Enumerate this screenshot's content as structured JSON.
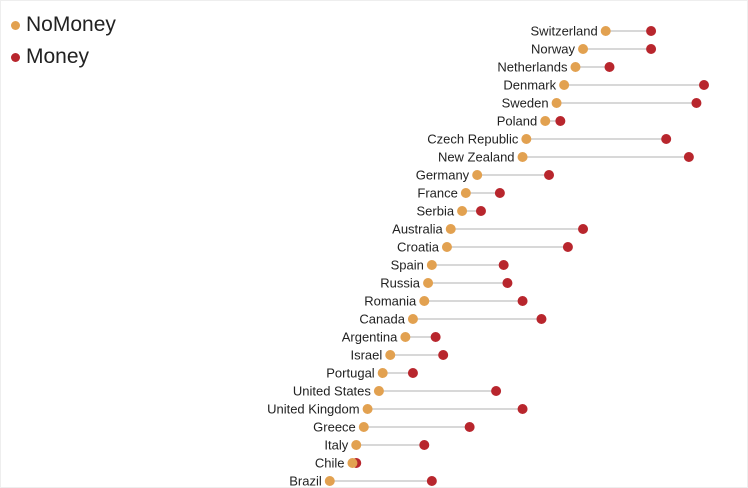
{
  "colors": {
    "nomoney": "#E2A150",
    "money": "#B8262D",
    "line": "#CCCCCC",
    "text": "#222222"
  },
  "chart_data": {
    "type": "dumbbell",
    "title": "",
    "xlabel": "",
    "ylabel": "",
    "legend_position": "top-left",
    "grid": false,
    "axes_visible": false,
    "xlim": [
      0,
      100
    ],
    "series": [
      {
        "name": "NoMoney",
        "key": "nomoney"
      },
      {
        "name": "Money",
        "key": "money"
      }
    ],
    "categories": [
      "Switzerland",
      "Norway",
      "Netherlands",
      "Denmark",
      "Sweden",
      "Poland",
      "Czech Republic",
      "New Zealand",
      "Germany",
      "France",
      "Serbia",
      "Australia",
      "Croatia",
      "Spain",
      "Russia",
      "Romania",
      "Canada",
      "Argentina",
      "Israel",
      "Portugal",
      "United States",
      "United Kingdom",
      "Greece",
      "Italy",
      "Chile",
      "Brazil"
    ],
    "nomoney": [
      74,
      68,
      66,
      63,
      61,
      58,
      53,
      52,
      40,
      37,
      36,
      33,
      32,
      28,
      27,
      26,
      23,
      21,
      17,
      15,
      14,
      11,
      10,
      8,
      7,
      1
    ],
    "money": [
      86,
      86,
      75,
      100,
      98,
      62,
      90,
      96,
      59,
      46,
      41,
      68,
      64,
      47,
      48,
      52,
      57,
      29,
      31,
      23,
      45,
      52,
      38,
      26,
      8,
      28
    ]
  }
}
